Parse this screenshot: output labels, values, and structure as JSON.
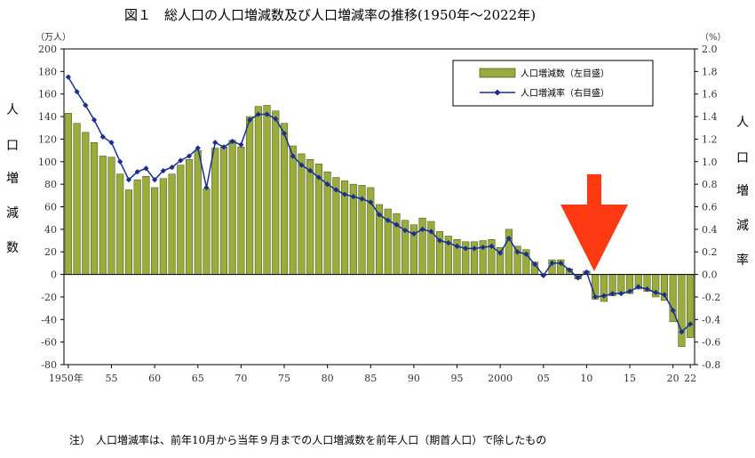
{
  "chart_data": {
    "type": "bar",
    "title": "図１　総人口の人口増減数及び人口増減率の推移(1950年〜2022年)",
    "x_tick_labels": [
      "1950年",
      "55",
      "60",
      "65",
      "70",
      "75",
      "80",
      "85",
      "90",
      "95",
      "2000",
      "05",
      "10",
      "15",
      "20",
      "22"
    ],
    "y_left": {
      "label_chars": [
        "人",
        "口",
        "増",
        "減",
        "数"
      ],
      "unit": "（万人）",
      "ylim": [
        -80,
        200
      ],
      "ticks": [
        "200",
        "180",
        "160",
        "140",
        "120",
        "100",
        "80",
        "60",
        "40",
        "20",
        "0",
        "-20",
        "-40",
        "-60",
        "-80"
      ]
    },
    "y_right": {
      "label_chars": [
        "人",
        "口",
        "増",
        "減",
        "率"
      ],
      "unit": "（%）",
      "ylim": [
        -0.8,
        2.0
      ],
      "ticks": [
        "2.0",
        "1.8",
        "1.6",
        "1.4",
        "1.2",
        "1.0",
        "0.8",
        "0.6",
        "0.4",
        "0.2",
        "0.0",
        "-0.2",
        "-0.4",
        "-0.6",
        "-0.8"
      ]
    },
    "grid": false,
    "legend_position": "top-right",
    "years": [
      1950,
      1951,
      1952,
      1953,
      1954,
      1955,
      1956,
      1957,
      1958,
      1959,
      1960,
      1961,
      1962,
      1963,
      1964,
      1965,
      1966,
      1967,
      1968,
      1969,
      1970,
      1971,
      1972,
      1973,
      1974,
      1975,
      1976,
      1977,
      1978,
      1979,
      1980,
      1981,
      1982,
      1983,
      1984,
      1985,
      1986,
      1987,
      1988,
      1989,
      1990,
      1991,
      1992,
      1993,
      1994,
      1995,
      1996,
      1997,
      1998,
      1999,
      2000,
      2001,
      2002,
      2003,
      2004,
      2005,
      2006,
      2007,
      2008,
      2009,
      2010,
      2011,
      2012,
      2013,
      2014,
      2015,
      2016,
      2017,
      2018,
      2019,
      2020,
      2021,
      2022
    ],
    "series": [
      {
        "name": "人口増減数（左目盛）",
        "type": "bar",
        "color": "#9aad3c",
        "values": [
          143,
          134,
          126,
          117,
          105,
          104,
          89,
          75,
          84,
          87,
          77,
          85,
          89,
          97,
          102,
          110,
          76,
          112,
          113,
          119,
          113,
          140,
          149,
          150,
          145,
          134,
          114,
          107,
          102,
          98,
          91,
          86,
          83,
          80,
          79,
          77,
          62,
          58,
          54,
          48,
          44,
          50,
          47,
          38,
          34,
          31,
          29,
          29,
          30,
          31,
          24,
          40,
          25,
          22,
          11,
          0,
          13,
          13,
          5,
          -4,
          3,
          -22,
          -24,
          -19,
          -17,
          -17,
          -13,
          -15,
          -20,
          -23,
          -42,
          -64,
          -56
        ]
      },
      {
        "name": "人口増減率（右目盛）",
        "type": "line",
        "color": "#1a2f8f",
        "values": [
          1.75,
          1.62,
          1.5,
          1.37,
          1.22,
          1.17,
          1.0,
          0.84,
          0.91,
          0.94,
          0.84,
          0.92,
          0.95,
          1.01,
          1.05,
          1.12,
          0.77,
          1.17,
          1.13,
          1.18,
          1.15,
          1.37,
          1.42,
          1.42,
          1.38,
          1.25,
          1.05,
          0.97,
          0.92,
          0.86,
          0.8,
          0.75,
          0.71,
          0.69,
          0.67,
          0.64,
          0.53,
          0.48,
          0.44,
          0.39,
          0.36,
          0.4,
          0.38,
          0.3,
          0.28,
          0.25,
          0.23,
          0.23,
          0.24,
          0.25,
          0.19,
          0.32,
          0.2,
          0.18,
          0.09,
          -0.01,
          0.1,
          0.1,
          0.04,
          -0.03,
          0.02,
          -0.2,
          -0.19,
          -0.17,
          -0.17,
          -0.15,
          -0.11,
          -0.13,
          -0.16,
          -0.18,
          -0.32,
          -0.51,
          -0.44
        ]
      }
    ]
  },
  "note": "注）　人口増減率は、前年10月から当年９月までの人口増減数を前年人口（期首人口）で除したもの",
  "colors": {
    "bar": "#9aad3c",
    "line": "#1a2f8f",
    "arrow": "#ff3a12"
  }
}
